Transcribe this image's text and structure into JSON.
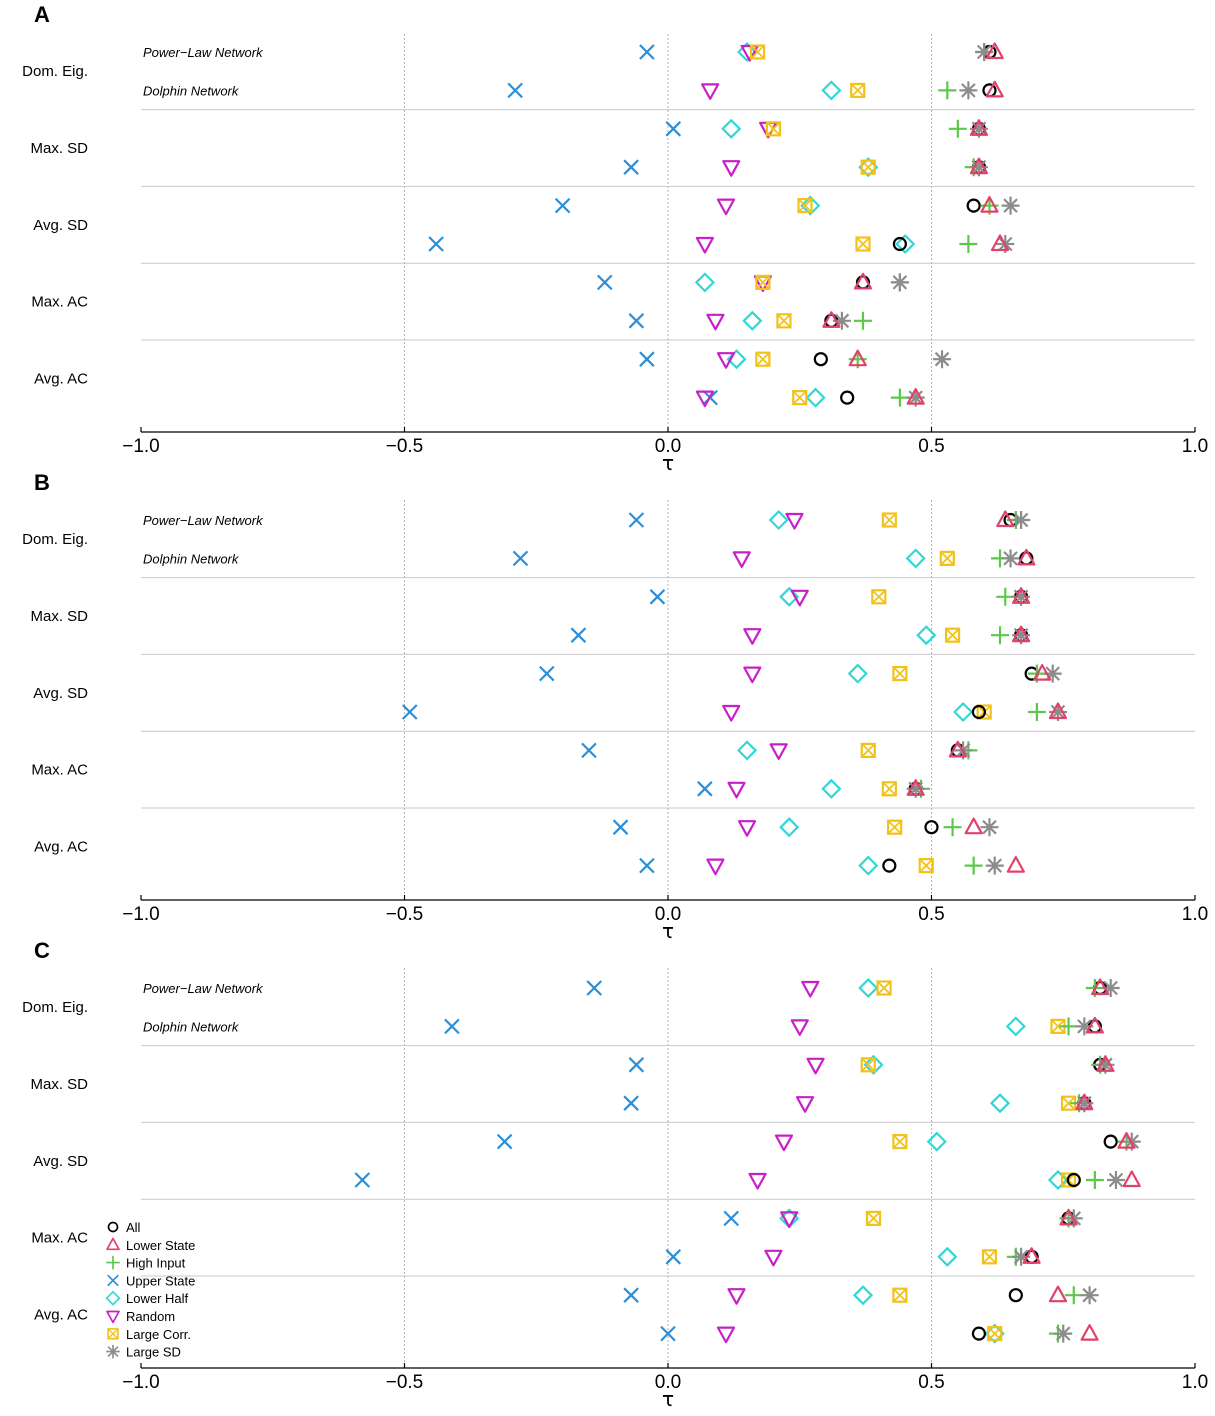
{
  "colors": {
    "All": "#000000",
    "Lower State": "#e0426a",
    "High Input": "#5cc84a",
    "Upper State": "#2b8ed6",
    "Lower Half": "#33d6d6",
    "Random": "#c81fc8",
    "Large Corr.": "#f2c21b",
    "Large SD": "#8c8c8c"
  },
  "legend": {
    "items": [
      {
        "label": "All",
        "icon": "circle-icon"
      },
      {
        "label": "Lower State",
        "icon": "triangle-up-icon"
      },
      {
        "label": "High Input",
        "icon": "plus-icon"
      },
      {
        "label": "Upper State",
        "icon": "cross-icon"
      },
      {
        "label": "Lower Half",
        "icon": "diamond-icon"
      },
      {
        "label": "Random",
        "icon": "triangle-down-icon"
      },
      {
        "label": "Large Corr.",
        "icon": "boxed-x-icon"
      },
      {
        "label": "Large SD",
        "icon": "asterisk-icon"
      }
    ]
  },
  "chart_data": [
    {
      "type": "scatter",
      "panel": "A",
      "xlabel": "τ",
      "xlim": [
        -1.0,
        1.0
      ],
      "xticks": [
        "−1.0",
        "−0.5",
        "0.0",
        "0.5",
        "1.0"
      ],
      "xtick_values": [
        -1.0,
        -0.5,
        0.0,
        0.5,
        1.0
      ],
      "gridlines": [
        -0.5,
        0.0,
        0.5
      ],
      "groups": [
        "Dom. Eig.",
        "Max. SD",
        "Avg. SD",
        "Max. AC",
        "Avg. AC"
      ],
      "network_labels": [
        "Power−Law Network",
        "Dolphin Network"
      ],
      "rows": [
        {
          "group": "Dom. Eig.",
          "network": "Power-Law",
          "values": {
            "All": 0.61,
            "Lower State": 0.62,
            "High Input": 0.6,
            "Upper State": -0.04,
            "Lower Half": 0.15,
            "Random": 0.155,
            "Large Corr.": 0.17,
            "Large SD": 0.6
          }
        },
        {
          "group": "Dom. Eig.",
          "network": "Dolphin",
          "values": {
            "All": 0.61,
            "Lower State": 0.62,
            "High Input": 0.53,
            "Upper State": -0.29,
            "Lower Half": 0.31,
            "Random": 0.08,
            "Large Corr.": 0.36,
            "Large SD": 0.57
          }
        },
        {
          "group": "Max. SD",
          "network": "Power-Law",
          "values": {
            "All": 0.59,
            "Lower State": 0.59,
            "High Input": 0.55,
            "Upper State": 0.01,
            "Lower Half": 0.12,
            "Random": 0.19,
            "Large Corr.": 0.2,
            "Large SD": 0.59
          }
        },
        {
          "group": "Max. SD",
          "network": "Dolphin",
          "values": {
            "All": 0.59,
            "Lower State": 0.59,
            "High Input": 0.58,
            "Upper State": -0.07,
            "Lower Half": 0.38,
            "Random": 0.12,
            "Large Corr.": 0.38,
            "Large SD": 0.59
          }
        },
        {
          "group": "Avg. SD",
          "network": "Power-Law",
          "values": {
            "All": 0.58,
            "Lower State": 0.61,
            "High Input": 0.61,
            "Upper State": -0.2,
            "Lower Half": 0.27,
            "Random": 0.11,
            "Large Corr.": 0.26,
            "Large SD": 0.65
          }
        },
        {
          "group": "Avg. SD",
          "network": "Dolphin",
          "values": {
            "All": 0.44,
            "Lower State": 0.63,
            "High Input": 0.57,
            "Upper State": -0.44,
            "Lower Half": 0.45,
            "Random": 0.07,
            "Large Corr.": 0.37,
            "Large SD": 0.64
          }
        },
        {
          "group": "Max. AC",
          "network": "Power-Law",
          "values": {
            "All": 0.37,
            "Lower State": 0.37,
            "High Input": 0.44,
            "Upper State": -0.12,
            "Lower Half": 0.07,
            "Random": 0.18,
            "Large Corr.": 0.18,
            "Large SD": 0.44
          }
        },
        {
          "group": "Max. AC",
          "network": "Dolphin",
          "values": {
            "All": 0.31,
            "Lower State": 0.31,
            "High Input": 0.37,
            "Upper State": -0.06,
            "Lower Half": 0.16,
            "Random": 0.09,
            "Large Corr.": 0.22,
            "Large SD": 0.33
          }
        },
        {
          "group": "Avg. AC",
          "network": "Power-Law",
          "values": {
            "All": 0.29,
            "Lower State": 0.36,
            "High Input": 0.36,
            "Upper State": -0.04,
            "Lower Half": 0.13,
            "Random": 0.11,
            "Large Corr.": 0.18,
            "Large SD": 0.52
          }
        },
        {
          "group": "Avg. AC",
          "network": "Dolphin",
          "values": {
            "All": 0.34,
            "Lower State": 0.47,
            "High Input": 0.44,
            "Upper State": 0.08,
            "Lower Half": 0.28,
            "Random": 0.07,
            "Large Corr.": 0.25,
            "Large SD": 0.47
          }
        }
      ]
    },
    {
      "type": "scatter",
      "panel": "B",
      "xlabel": "τ",
      "xlim": [
        -1.0,
        1.0
      ],
      "xticks": [
        "−1.0",
        "−0.5",
        "0.0",
        "0.5",
        "1.0"
      ],
      "xtick_values": [
        -1.0,
        -0.5,
        0.0,
        0.5,
        1.0
      ],
      "gridlines": [
        -0.5,
        0.0,
        0.5
      ],
      "groups": [
        "Dom. Eig.",
        "Max. SD",
        "Avg. SD",
        "Max. AC",
        "Avg. AC"
      ],
      "network_labels": [
        "Power−Law Network",
        "Dolphin Network"
      ],
      "rows": [
        {
          "group": "Dom. Eig.",
          "network": "Power-Law",
          "values": {
            "All": 0.65,
            "Lower State": 0.64,
            "High Input": 0.66,
            "Upper State": -0.06,
            "Lower Half": 0.21,
            "Random": 0.24,
            "Large Corr.": 0.42,
            "Large SD": 0.67
          }
        },
        {
          "group": "Dom. Eig.",
          "network": "Dolphin",
          "values": {
            "All": 0.68,
            "Lower State": 0.68,
            "High Input": 0.63,
            "Upper State": -0.28,
            "Lower Half": 0.47,
            "Random": 0.14,
            "Large Corr.": 0.53,
            "Large SD": 0.65
          }
        },
        {
          "group": "Max. SD",
          "network": "Power-Law",
          "values": {
            "All": 0.67,
            "Lower State": 0.67,
            "High Input": 0.64,
            "Upper State": -0.02,
            "Lower Half": 0.23,
            "Random": 0.25,
            "Large Corr.": 0.4,
            "Large SD": 0.67
          }
        },
        {
          "group": "Max. SD",
          "network": "Dolphin",
          "values": {
            "All": 0.67,
            "Lower State": 0.67,
            "High Input": 0.63,
            "Upper State": -0.17,
            "Lower Half": 0.49,
            "Random": 0.16,
            "Large Corr.": 0.54,
            "Large SD": 0.67
          }
        },
        {
          "group": "Avg. SD",
          "network": "Power-Law",
          "values": {
            "All": 0.69,
            "Lower State": 0.71,
            "High Input": 0.7,
            "Upper State": -0.23,
            "Lower Half": 0.36,
            "Random": 0.16,
            "Large Corr.": 0.44,
            "Large SD": 0.73
          }
        },
        {
          "group": "Avg. SD",
          "network": "Dolphin",
          "values": {
            "All": 0.59,
            "Lower State": 0.74,
            "High Input": 0.7,
            "Upper State": -0.49,
            "Lower Half": 0.56,
            "Random": 0.12,
            "Large Corr.": 0.6,
            "Large SD": 0.74
          }
        },
        {
          "group": "Max. AC",
          "network": "Power-Law",
          "values": {
            "All": 0.55,
            "Lower State": 0.55,
            "High Input": 0.57,
            "Upper State": -0.15,
            "Lower Half": 0.15,
            "Random": 0.21,
            "Large Corr.": 0.38,
            "Large SD": 0.56
          }
        },
        {
          "group": "Max. AC",
          "network": "Dolphin",
          "values": {
            "All": 0.47,
            "Lower State": 0.47,
            "High Input": 0.48,
            "Upper State": 0.07,
            "Lower Half": 0.31,
            "Random": 0.13,
            "Large Corr.": 0.42,
            "Large SD": 0.47
          }
        },
        {
          "group": "Avg. AC",
          "network": "Power-Law",
          "values": {
            "All": 0.5,
            "Lower State": 0.58,
            "High Input": 0.54,
            "Upper State": -0.09,
            "Lower Half": 0.23,
            "Random": 0.15,
            "Large Corr.": 0.43,
            "Large SD": 0.61
          }
        },
        {
          "group": "Avg. AC",
          "network": "Dolphin",
          "values": {
            "All": 0.42,
            "Lower State": 0.66,
            "High Input": 0.58,
            "Upper State": -0.04,
            "Lower Half": 0.38,
            "Random": 0.09,
            "Large Corr.": 0.49,
            "Large SD": 0.62
          }
        }
      ]
    },
    {
      "type": "scatter",
      "panel": "C",
      "xlabel": "τ",
      "xlim": [
        -1.0,
        1.0
      ],
      "xticks": [
        "−1.0",
        "−0.5",
        "0.0",
        "0.5",
        "1.0"
      ],
      "xtick_values": [
        -1.0,
        -0.5,
        0.0,
        0.5,
        1.0
      ],
      "gridlines": [
        -0.5,
        0.0,
        0.5
      ],
      "groups": [
        "Dom. Eig.",
        "Max. SD",
        "Avg. SD",
        "Max. AC",
        "Avg. AC"
      ],
      "network_labels": [
        "Power−Law Network",
        "Dolphin Network"
      ],
      "rows": [
        {
          "group": "Dom. Eig.",
          "network": "Power-Law",
          "values": {
            "All": 0.82,
            "Lower State": 0.82,
            "High Input": 0.81,
            "Upper State": -0.14,
            "Lower Half": 0.38,
            "Random": 0.27,
            "Large Corr.": 0.41,
            "Large SD": 0.84
          }
        },
        {
          "group": "Dom. Eig.",
          "network": "Dolphin",
          "values": {
            "All": 0.81,
            "Lower State": 0.81,
            "High Input": 0.76,
            "Upper State": -0.41,
            "Lower Half": 0.66,
            "Random": 0.25,
            "Large Corr.": 0.74,
            "Large SD": 0.79
          }
        },
        {
          "group": "Max. SD",
          "network": "Power-Law",
          "values": {
            "All": 0.82,
            "Lower State": 0.83,
            "High Input": 0.82,
            "Upper State": -0.06,
            "Lower Half": 0.39,
            "Random": 0.28,
            "Large Corr.": 0.38,
            "Large SD": 0.83
          }
        },
        {
          "group": "Max. SD",
          "network": "Dolphin",
          "values": {
            "All": 0.79,
            "Lower State": 0.79,
            "High Input": 0.78,
            "Upper State": -0.07,
            "Lower Half": 0.63,
            "Random": 0.26,
            "Large Corr.": 0.76,
            "Large SD": 0.79
          }
        },
        {
          "group": "Avg. SD",
          "network": "Power-Law",
          "values": {
            "All": 0.84,
            "Lower State": 0.87,
            "High Input": 0.87,
            "Upper State": -0.31,
            "Lower Half": 0.51,
            "Random": 0.22,
            "Large Corr.": 0.44,
            "Large SD": 0.88
          }
        },
        {
          "group": "Avg. SD",
          "network": "Dolphin",
          "values": {
            "All": 0.77,
            "Lower State": 0.88,
            "High Input": 0.81,
            "Upper State": -0.58,
            "Lower Half": 0.74,
            "Random": 0.17,
            "Large Corr.": 0.76,
            "Large SD": 0.85
          }
        },
        {
          "group": "Max. AC",
          "network": "Power-Law",
          "values": {
            "All": 0.76,
            "Lower State": 0.76,
            "High Input": 0.76,
            "Upper State": 0.12,
            "Lower Half": 0.23,
            "Random": 0.23,
            "Large Corr.": 0.39,
            "Large SD": 0.77
          }
        },
        {
          "group": "Max. AC",
          "network": "Dolphin",
          "values": {
            "All": 0.69,
            "Lower State": 0.69,
            "High Input": 0.66,
            "Upper State": 0.01,
            "Lower Half": 0.53,
            "Random": 0.2,
            "Large Corr.": 0.61,
            "Large SD": 0.67
          }
        },
        {
          "group": "Avg. AC",
          "network": "Power-Law",
          "values": {
            "All": 0.66,
            "Lower State": 0.74,
            "High Input": 0.77,
            "Upper State": -0.07,
            "Lower Half": 0.37,
            "Random": 0.13,
            "Large Corr.": 0.44,
            "Large SD": 0.8
          }
        },
        {
          "group": "Avg. AC",
          "network": "Dolphin",
          "values": {
            "All": 0.59,
            "Lower State": 0.8,
            "High Input": 0.74,
            "Upper State": 0.0,
            "Lower Half": 0.62,
            "Random": 0.11,
            "Large Corr.": 0.62,
            "Large SD": 0.75
          }
        }
      ]
    }
  ]
}
